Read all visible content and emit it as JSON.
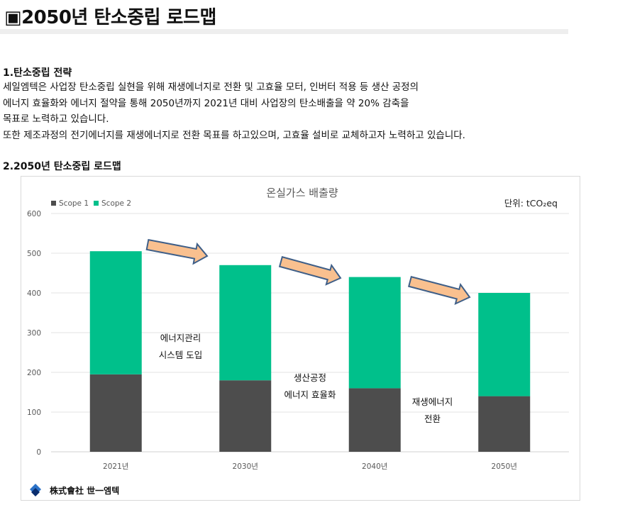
{
  "page": {
    "title": "▣2050년 탄소중립 로드맵",
    "section1_heading": "1.탄소중립 전략",
    "section1_lines": [
      "세일엠텍은 사업장 탄소중립 실현을 위해 재생에너지로 전환 및 고효율 모터, 인버터 적용 등 생산 공정의",
      "에너지 효율화와 에너지 절약을 통해 2050년까지 2021년 대비 사업장의 탄소배출을 약 20% 감축을",
      "목표로 노력하고 있습니다.",
      "또한 제조과정의 전기에너지를 재생에너지로 전환 목표를 하고있으며, 고효율 설비로 교체하고자 노력하고 있습니다."
    ],
    "section2_heading": "2.2050년 탄소중립 로드맵",
    "logo_text": "株式會社 世一엠텍"
  },
  "chart_data": {
    "type": "bar",
    "stacked": true,
    "title": "온실가스 배출량",
    "unit_label": "단위: tCO₂eq",
    "categories": [
      "2021년",
      "2030년",
      "2040년",
      "2050년"
    ],
    "series": [
      {
        "name": "Scope 1",
        "color": "#4d4d4d",
        "values": [
          195,
          180,
          160,
          140
        ]
      },
      {
        "name": "Scope 2",
        "color": "#00c08b",
        "values": [
          310,
          290,
          280,
          260
        ]
      }
    ],
    "ylim": [
      0,
      600
    ],
    "yticks": [
      0,
      100,
      200,
      300,
      400,
      500,
      600
    ],
    "grid": true,
    "legend_position": "top-left",
    "arrow_color": "#f9c08f",
    "annotations": [
      {
        "lines": [
          "에너지관리",
          "시스템 도입"
        ]
      },
      {
        "lines": [
          "생산공정",
          "에너지 효율화"
        ]
      },
      {
        "lines": [
          "재생에너지",
          "전환"
        ]
      }
    ]
  }
}
